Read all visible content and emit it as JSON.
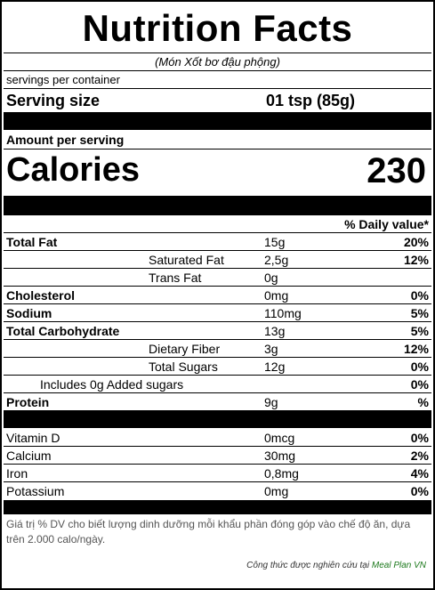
{
  "title": "Nutrition Facts",
  "subtitle": "(Món Xốt bơ đậu phộng)",
  "servings_label": "servings per container",
  "serving_size": {
    "label": "Serving size",
    "value": "01 tsp  (85g)"
  },
  "amount_header": "Amount per serving",
  "calories": {
    "label": "Calories",
    "value": "230"
  },
  "dv_header": "% Daily value*",
  "nutrients": [
    {
      "name": "Total Fat",
      "amount": "15g",
      "dv": "20%"
    },
    {
      "name": "Saturated Fat",
      "amount": "2,5g",
      "dv": "12%"
    },
    {
      "name": "Trans Fat",
      "amount": "0g",
      "dv": ""
    },
    {
      "name": "Cholesterol",
      "amount": "0mg",
      "dv": "0%"
    },
    {
      "name": "Sodium",
      "amount": "110mg",
      "dv": "5%"
    },
    {
      "name": "Total Carbohydrate",
      "amount": "13g",
      "dv": "5%"
    },
    {
      "name": "Dietary Fiber",
      "amount": "3g",
      "dv": "12%"
    },
    {
      "name": "Total Sugars",
      "amount": "12g",
      "dv": "0%"
    },
    {
      "name": "Includes 0g Added sugars",
      "amount": "",
      "dv": "0%"
    },
    {
      "name": "Protein",
      "amount": "9g",
      "dv": "%"
    }
  ],
  "vitamins": [
    {
      "name": "Vitamin D",
      "amount": "0mcg",
      "dv": "0%"
    },
    {
      "name": "Calcium",
      "amount": "30mg",
      "dv": "2%"
    },
    {
      "name": "Iron",
      "amount": "0,8mg",
      "dv": "4%"
    },
    {
      "name": "Potassium",
      "amount": "0mg",
      "dv": "0%"
    }
  ],
  "footnote": "Giá trị % DV cho biết lượng dinh dưỡng mỗi khẩu phần đóng góp vào chế độ ăn, dựa trên 2.000 calo/ngày.",
  "credit": {
    "text": "Công thức được nghiên cứu tại",
    "source": "Meal Plan VN"
  }
}
